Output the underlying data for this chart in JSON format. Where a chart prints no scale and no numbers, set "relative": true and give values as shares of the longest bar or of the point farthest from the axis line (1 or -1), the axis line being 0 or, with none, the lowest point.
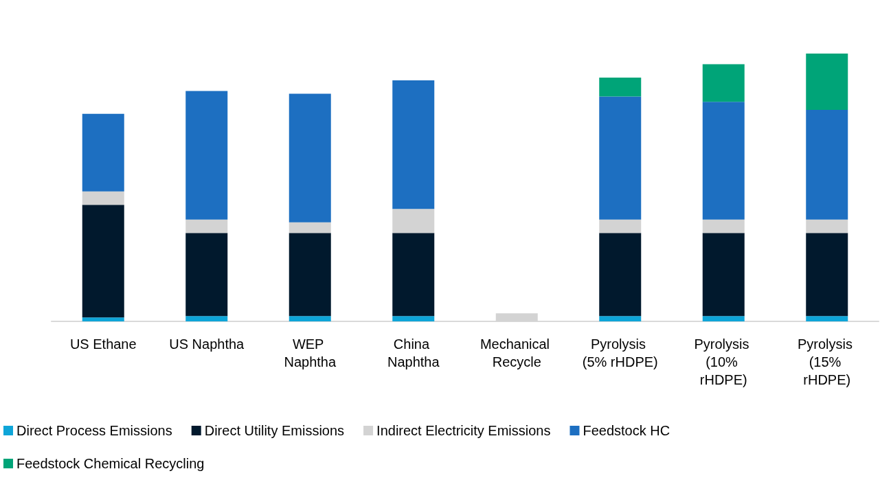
{
  "chart_data": {
    "type": "bar",
    "stacked": true,
    "relative": true,
    "legend": "bottom",
    "categories": [
      "US Ethane",
      "US Naphtha",
      "WEP Naphtha",
      "China Naphtha",
      "Mechanical Recycle",
      "Pyrolysis (5% rHDPE)",
      "Pyrolysis (10% rHDPE)",
      "Pyrolysis (15% rHDPE)"
    ],
    "series": [
      {
        "name": "Direct Process Emissions",
        "color": "#0ea5d8",
        "values": [
          0.015,
          0.02,
          0.02,
          0.02,
          null,
          0.02,
          0.02,
          0.02
        ]
      },
      {
        "name": "Direct Utility Emissions",
        "color": "#01192d",
        "values": [
          0.42,
          0.31,
          0.31,
          0.31,
          null,
          0.31,
          0.31,
          0.31
        ]
      },
      {
        "name": "Indirect Electricity Emissions",
        "color": "#d3d3d3",
        "values": [
          0.05,
          0.05,
          0.04,
          0.09,
          0.03,
          0.05,
          0.05,
          0.05
        ]
      },
      {
        "name": "Feedstock HC",
        "color": "#1d6fc1",
        "values": [
          0.29,
          0.48,
          0.48,
          0.48,
          null,
          0.46,
          0.44,
          0.41
        ]
      },
      {
        "name": "Feedstock Chemical Recycling",
        "color": "#00a478",
        "values": [
          null,
          null,
          null,
          null,
          null,
          0.07,
          0.14,
          0.21
        ]
      }
    ]
  }
}
